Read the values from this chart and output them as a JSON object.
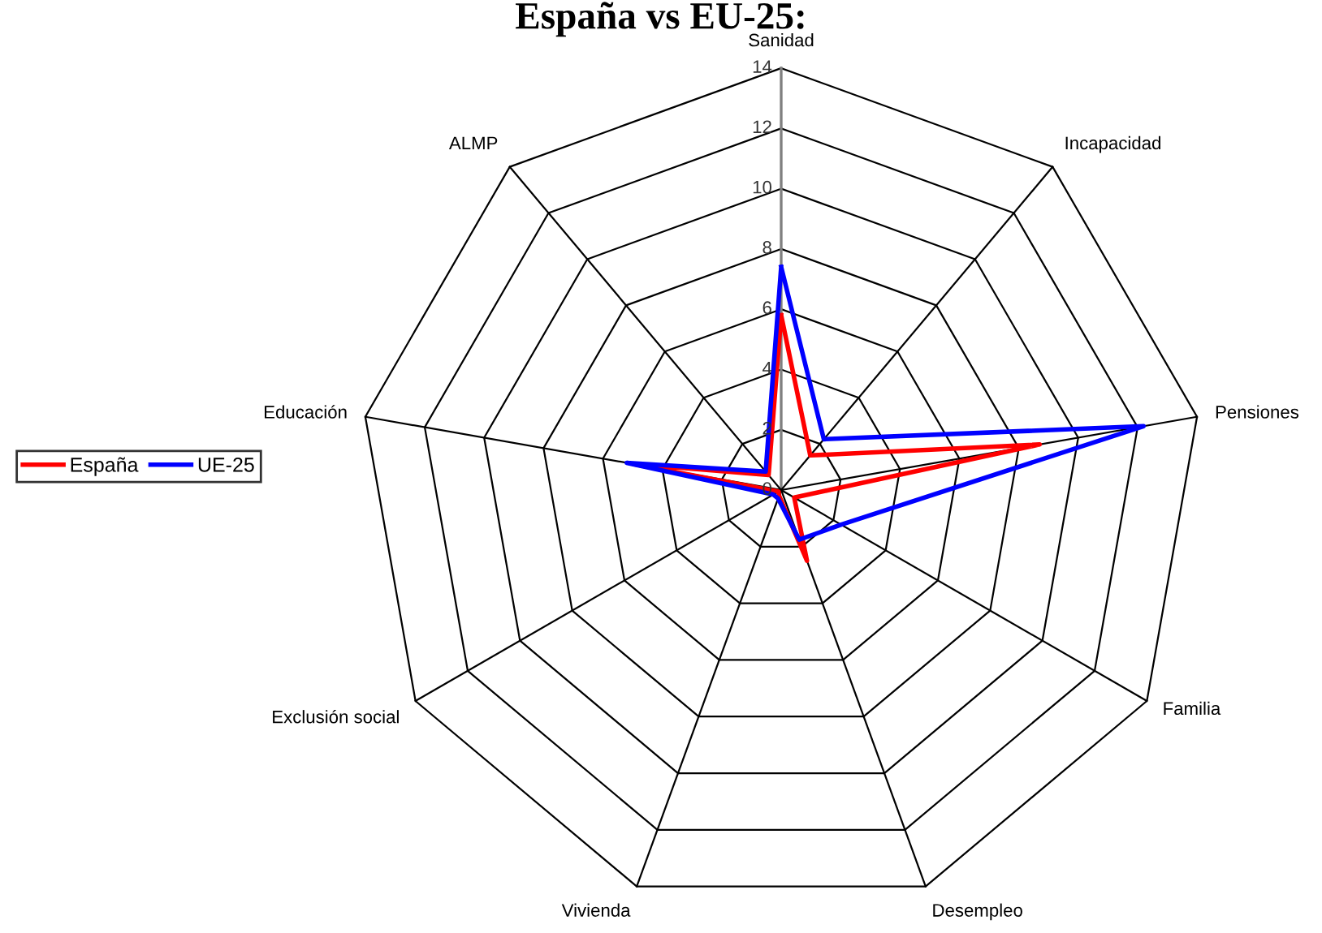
{
  "chart_data": {
    "type": "radar",
    "title": "España vs EU-25:",
    "categories": [
      "Sanidad",
      "Incapacidad",
      "Pensiones",
      "Familia",
      "Desempleo",
      "Vivienda",
      "Exclusión social",
      "Educación",
      "ALMP"
    ],
    "series": [
      {
        "name": "España",
        "color": "#ff0000",
        "values": [
          5.8,
          1.5,
          8.7,
          0.5,
          2.5,
          0.2,
          0.1,
          5.0,
          0.65
        ]
      },
      {
        "name": "UE-25",
        "color": "#0000ff",
        "values": [
          7.4,
          2.2,
          12.2,
          2.3,
          1.75,
          0.3,
          0.3,
          5.2,
          0.8
        ]
      }
    ],
    "ylim": [
      0,
      14
    ],
    "yticks": [
      0,
      2,
      4,
      6,
      8,
      10,
      12,
      14
    ],
    "grid": true,
    "legend": "left",
    "marker": "none",
    "line_style": "solid"
  }
}
